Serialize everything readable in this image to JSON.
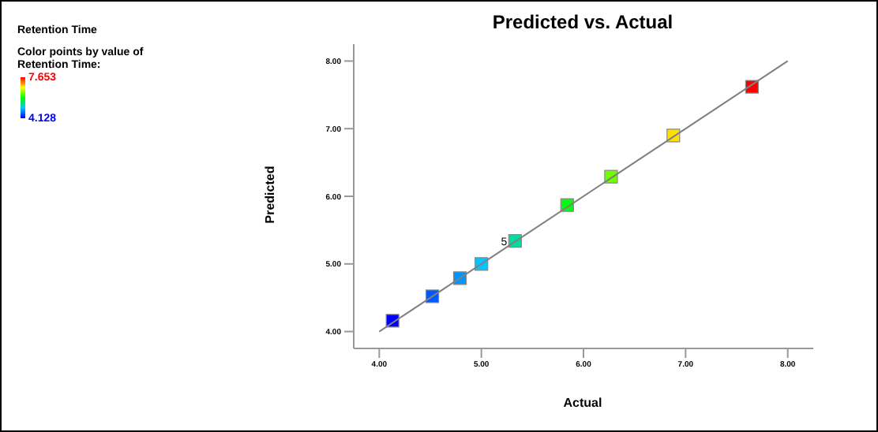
{
  "chart_data": {
    "type": "scatter",
    "title": "Predicted vs. Actual",
    "xlabel": "Actual",
    "ylabel": "Predicted",
    "clabel": "Color points by value of Retention Time:",
    "annotations": [
      "Retention Time",
      "7.653",
      "4.128",
      {
        "text": "5",
        "x": 5.33,
        "y": 5.34
      }
    ],
    "xlim": [
      3.75,
      8.25
    ],
    "ylim": [
      3.75,
      8.25
    ],
    "xticks": [
      {
        "value": 4,
        "label": "4.00"
      },
      {
        "value": 5,
        "label": "5.00"
      },
      {
        "value": 6,
        "label": "6.00"
      },
      {
        "value": 7,
        "label": "7.00"
      },
      {
        "value": 8,
        "label": "8.00"
      }
    ],
    "yticks": [
      {
        "value": 4,
        "label": "4.00"
      },
      {
        "value": 5,
        "label": "5.00"
      },
      {
        "value": 6,
        "label": "6.00"
      },
      {
        "value": 7,
        "label": "7.00"
      },
      {
        "value": 8,
        "label": "8.00"
      }
    ],
    "series": [
      {
        "marker": "square",
        "x": [
          4.13,
          4.52,
          4.79,
          5.0,
          5.33,
          5.84,
          6.27,
          6.88,
          7.65
        ],
        "values": [
          4.16,
          4.52,
          4.79,
          5.0,
          5.34,
          5.87,
          6.29,
          6.9,
          7.62
        ],
        "colors": [
          "#0000ff",
          "#0059ff",
          "#0096ff",
          "#00c6ff",
          "#00dca2",
          "#00fc0f",
          "#6eff00",
          "#ffe000",
          "#ff0000"
        ]
      },
      {
        "type": "line",
        "color": "#808080",
        "x": [
          4,
          8
        ],
        "values": [
          4,
          8
        ]
      }
    ]
  }
}
